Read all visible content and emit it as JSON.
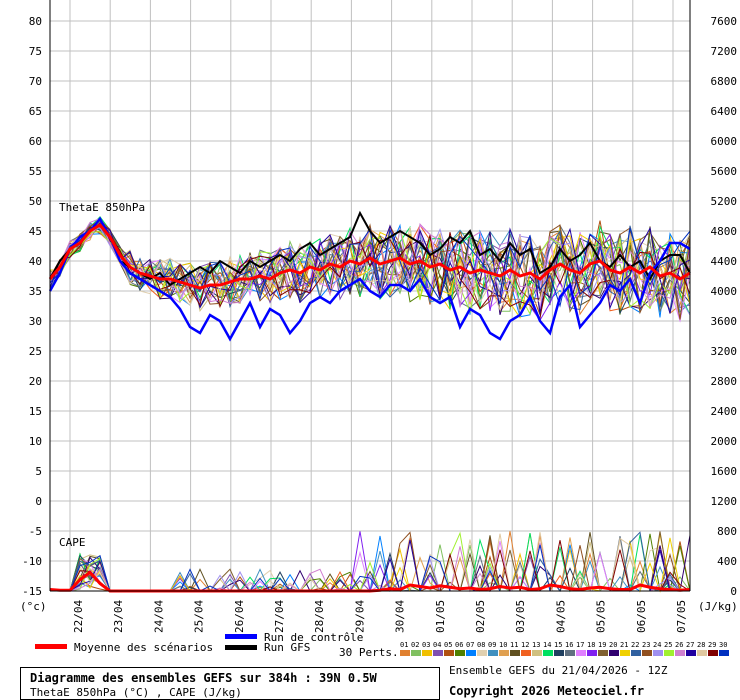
{
  "chart_data": {
    "type": "line",
    "title": "Diagramme des ensembles GEFS sur 384h : 39N 0.5W",
    "subtitle": "ThetaE 850hPa (°C) , CAPE (J/kg)",
    "run_info": "Ensemble GEFS du 21/04/2026 - 12Z",
    "copyright": "Copyright 2026 Meteociel.fr",
    "left_axis": {
      "unit": "(°c)",
      "ylim": [
        -15,
        80
      ],
      "ticks": [
        80,
        75,
        70,
        65,
        60,
        55,
        50,
        45,
        40,
        35,
        30,
        25,
        20,
        15,
        10,
        5,
        0,
        -5,
        -10,
        -15
      ]
    },
    "right_axis": {
      "unit": "(J/kg)",
      "ylim": [
        0,
        7600
      ],
      "ticks": [
        7600,
        7200,
        6800,
        6400,
        6000,
        5600,
        5200,
        4800,
        4400,
        4000,
        3600,
        3200,
        2800,
        2400,
        2000,
        1600,
        1200,
        800,
        400,
        0
      ]
    },
    "x_ticks": [
      "22/04",
      "23/04",
      "24/04",
      "25/04",
      "26/04",
      "27/04",
      "28/04",
      "29/04",
      "30/04",
      "01/05",
      "02/05",
      "03/05",
      "04/05",
      "05/05",
      "06/05",
      "07/05"
    ],
    "x_step_hours": 6,
    "panel_labels": {
      "thetae": "ThetaE 850hPa",
      "cape": "CAPE"
    },
    "legend": {
      "mean": "Moyenne des scénarios",
      "control": "Run de contrôle",
      "gfs": "Run GFS",
      "perts": "30 Perts."
    },
    "colors": {
      "mean": "#ff0000",
      "control": "#0000ff",
      "gfs": "#000000"
    },
    "pert_labels": [
      "01",
      "02",
      "03",
      "04",
      "05",
      "06",
      "07",
      "08",
      "09",
      "10",
      "11",
      "12",
      "13",
      "14",
      "15",
      "16",
      "17",
      "18",
      "19",
      "20",
      "21",
      "22",
      "23",
      "24",
      "25",
      "26",
      "27",
      "28",
      "29",
      "30"
    ],
    "pert_colors": [
      "#e08030",
      "#80c060",
      "#f0c000",
      "#8050b0",
      "#b05010",
      "#508000",
      "#0080ff",
      "#e0d0b0",
      "#4090c0",
      "#e0a050",
      "#605020",
      "#f06020",
      "#d0c080",
      "#00e060",
      "#204060",
      "#607080",
      "#e080ff",
      "#8020f0",
      "#806030",
      "#300070",
      "#f0d000",
      "#3060a0",
      "#905020",
      "#a090f0",
      "#a0f030",
      "#d080d0",
      "#2000a0",
      "#e0c8a0",
      "#800000",
      "#0030c0"
    ],
    "series": [
      {
        "name": "mean_thetae",
        "values": [
          37,
          39,
          42,
          43,
          45,
          46,
          44,
          41,
          39,
          38,
          37.5,
          37,
          37,
          36.5,
          36,
          35.5,
          36,
          36,
          36.5,
          37,
          37,
          37.5,
          37,
          38,
          38.5,
          38,
          39,
          38.5,
          39.5,
          39,
          40,
          39.5,
          40.5,
          39.5,
          40,
          40.5,
          39.5,
          40,
          39,
          39.5,
          38.5,
          39,
          38,
          38.5,
          38,
          37.5,
          38.5,
          37.5,
          38,
          37,
          38.5,
          39.5,
          38.5,
          38,
          39.5,
          40,
          38.5,
          38,
          39,
          38,
          39,
          37.5,
          38,
          37,
          38
        ]
      },
      {
        "name": "control_thetae",
        "values": [
          35,
          38,
          42,
          44,
          45,
          47,
          44,
          40,
          38,
          37,
          36,
          35,
          34,
          32,
          29,
          28,
          31,
          30,
          27,
          30,
          33,
          29,
          32,
          31,
          28,
          30,
          33,
          34,
          33,
          35,
          36,
          37,
          35,
          34,
          36,
          36,
          35,
          37,
          34,
          33,
          34,
          29,
          32,
          31,
          28,
          27,
          30,
          31,
          34,
          30,
          28,
          34,
          36,
          29,
          31,
          33,
          36,
          35,
          37,
          33,
          38,
          40,
          43,
          43,
          42
        ]
      },
      {
        "name": "gfs_thetae",
        "values": [
          37,
          40,
          42,
          43,
          45,
          47,
          44,
          40,
          39,
          38,
          37,
          38,
          36,
          37,
          38,
          39,
          38,
          40,
          39,
          38,
          40,
          39,
          40,
          41,
          40,
          42,
          43,
          41,
          42,
          43,
          44,
          48,
          45,
          43,
          44,
          45,
          44,
          43,
          41,
          42,
          44,
          43,
          45,
          41,
          42,
          40,
          43,
          41,
          42,
          38,
          39,
          42,
          40,
          41,
          43,
          40,
          39,
          41,
          39,
          40,
          37,
          40,
          41,
          41,
          38
        ]
      },
      {
        "name": "mean_cape",
        "values": [
          20,
          10,
          10,
          150,
          250,
          100,
          0,
          0,
          0,
          0,
          0,
          0,
          0,
          0,
          0,
          0,
          0,
          0,
          0,
          0,
          0,
          0,
          0,
          0,
          0,
          0,
          0,
          0,
          0,
          0,
          0,
          0,
          0,
          10,
          30,
          20,
          80,
          60,
          40,
          70,
          50,
          30,
          40,
          20,
          30,
          60,
          40,
          50,
          20,
          30,
          80,
          60,
          30,
          20,
          40,
          50,
          30,
          20,
          20,
          80,
          50,
          30,
          20,
          10,
          20
        ]
      }
    ]
  }
}
